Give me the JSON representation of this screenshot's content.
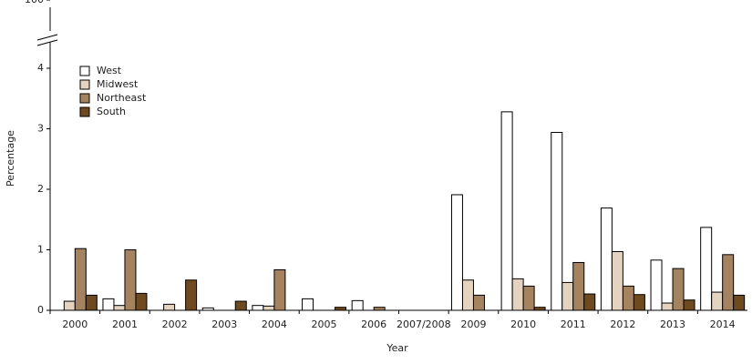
{
  "chart_data": {
    "type": "bar",
    "x_label": "Year",
    "y_label": "Percentage",
    "categories": [
      "2000",
      "2001",
      "2002",
      "2003",
      "2004",
      "2005",
      "2006",
      "2007/2008",
      "2009",
      "2010",
      "2011",
      "2012",
      "2013",
      "2014"
    ],
    "series": [
      {
        "name": "West",
        "color": "#ffffff",
        "values": [
          0,
          0.19,
          0,
          0.04,
          0.08,
          0.19,
          0.16,
          0,
          1.91,
          3.28,
          2.94,
          1.69,
          0.83,
          1.37
        ]
      },
      {
        "name": "Midwest",
        "color": "#e3d3bf",
        "values": [
          0.15,
          0.08,
          0.1,
          0,
          0.07,
          0,
          0,
          0,
          0.5,
          0.52,
          0.46,
          0.97,
          0.12,
          0.3
        ]
      },
      {
        "name": "Northeast",
        "color": "#a5835f",
        "values": [
          1.02,
          1.0,
          0,
          0,
          0.67,
          0,
          0.05,
          0,
          0.25,
          0.4,
          0.79,
          0.4,
          0.69,
          0.92
        ]
      },
      {
        "name": "South",
        "color": "#6e4a1e",
        "values": [
          0.25,
          0.28,
          0.5,
          0.15,
          0,
          0.05,
          0,
          0,
          0,
          0.05,
          0.27,
          0.26,
          0.17,
          0.25
        ]
      }
    ],
    "ylim": [
      0,
      100
    ],
    "axis_break": [
      4,
      100
    ],
    "yticks": [
      0,
      1,
      2,
      3,
      4,
      100
    ],
    "legend": "upper left",
    "grid": false
  }
}
